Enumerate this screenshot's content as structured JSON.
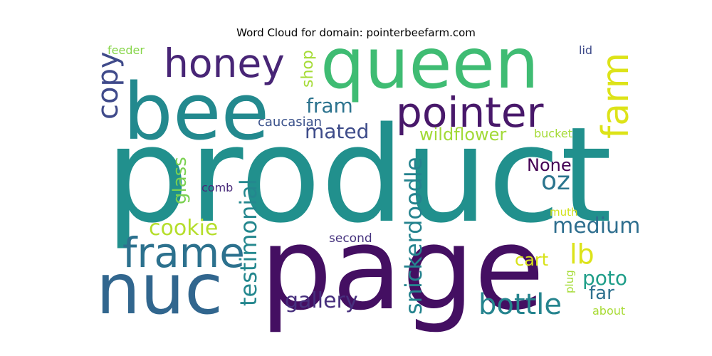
{
  "chart_data": {
    "type": "wordcloud",
    "title": "Word Cloud for domain: pointerbeefarm.com",
    "words": [
      {
        "text": "product",
        "color": "#21908d"
      },
      {
        "text": "page",
        "color": "#440f62"
      },
      {
        "text": "queen",
        "color": "#3fbc73"
      },
      {
        "text": "bee",
        "color": "#23898e"
      },
      {
        "text": "nuc",
        "color": "#31668e"
      },
      {
        "text": "pointer",
        "color": "#48186a"
      },
      {
        "text": "honey",
        "color": "#482576"
      },
      {
        "text": "frame",
        "color": "#2c718e"
      },
      {
        "text": "farm",
        "color": "#dde318"
      },
      {
        "text": "copy",
        "color": "#3f4a8a"
      },
      {
        "text": "bottle",
        "color": "#25848e"
      },
      {
        "text": "testimonial",
        "color": "#24878e"
      },
      {
        "text": "snickerdoodle",
        "color": "#25838e"
      },
      {
        "text": "gallery",
        "color": "#472f7d"
      },
      {
        "text": "lb",
        "color": "#dce319"
      },
      {
        "text": "oz",
        "color": "#2b758e"
      },
      {
        "text": "medium",
        "color": "#2e6e8e"
      },
      {
        "text": "cookie",
        "color": "#b5de2b"
      },
      {
        "text": "fram",
        "color": "#2c738e"
      },
      {
        "text": "mated",
        "color": "#3e4c8a"
      },
      {
        "text": "wildflower",
        "color": "#a2da37"
      },
      {
        "text": "glass",
        "color": "#7ad151"
      },
      {
        "text": "poto",
        "color": "#1f9e89"
      },
      {
        "text": "far",
        "color": "#2d708e"
      },
      {
        "text": "cart",
        "color": "#d8e219"
      },
      {
        "text": "None",
        "color": "#440154"
      },
      {
        "text": "shop",
        "color": "#a5db36"
      },
      {
        "text": "caucasian",
        "color": "#3b528b"
      },
      {
        "text": "second",
        "color": "#46337e"
      },
      {
        "text": "comb",
        "color": "#482979"
      },
      {
        "text": "bucket",
        "color": "#a5db36"
      },
      {
        "text": "feeder",
        "color": "#86d549"
      },
      {
        "text": "lid",
        "color": "#3e4a89"
      },
      {
        "text": "muth",
        "color": "#d2e21b"
      },
      {
        "text": "plug",
        "color": "#a5db36"
      },
      {
        "text": "about",
        "color": "#a8db34"
      }
    ]
  }
}
